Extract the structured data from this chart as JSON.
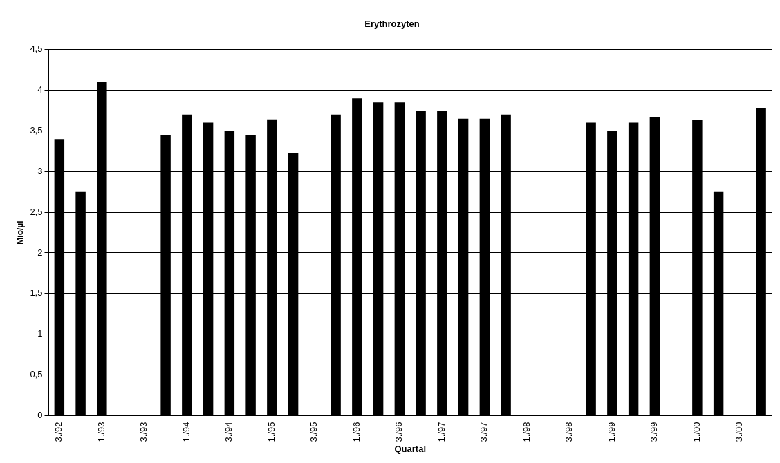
{
  "chart_data": {
    "type": "bar",
    "title": "Erythrozyten",
    "xlabel": "Quartal",
    "ylabel": "Mio/µl",
    "categories": [
      "3./92",
      null,
      "1./93",
      null,
      "3./93",
      null,
      "1./94",
      null,
      "3./94",
      null,
      "1./95",
      null,
      "3./95",
      null,
      "1./96",
      null,
      "3./96",
      null,
      "1./97",
      null,
      "3./97",
      null,
      "1./98",
      null,
      "3./98",
      null,
      "1./99",
      null,
      "3./99",
      null,
      "1./00",
      null,
      "3./00",
      null
    ],
    "values": [
      3.4,
      2.75,
      4.1,
      null,
      null,
      3.45,
      3.7,
      3.6,
      3.5,
      3.45,
      3.64,
      3.23,
      null,
      3.7,
      3.9,
      3.85,
      3.85,
      3.75,
      3.75,
      3.65,
      3.65,
      3.7,
      null,
      null,
      null,
      3.6,
      3.5,
      3.6,
      3.67,
      null,
      3.63,
      2.75,
      null,
      3.78
    ],
    "color": "#000000",
    "ylim": [
      0,
      4.5
    ],
    "yticks": [
      0,
      {
        "value": 0.5,
        "label": "0,5"
      },
      1,
      {
        "value": 1.5,
        "label": "1,5"
      },
      2,
      {
        "value": 2.5,
        "label": "2,5"
      },
      3,
      {
        "value": 3.5,
        "label": "3,5"
      },
      4,
      {
        "value": 4.5,
        "label": "4,5"
      }
    ],
    "grid": "y",
    "legend": false
  }
}
